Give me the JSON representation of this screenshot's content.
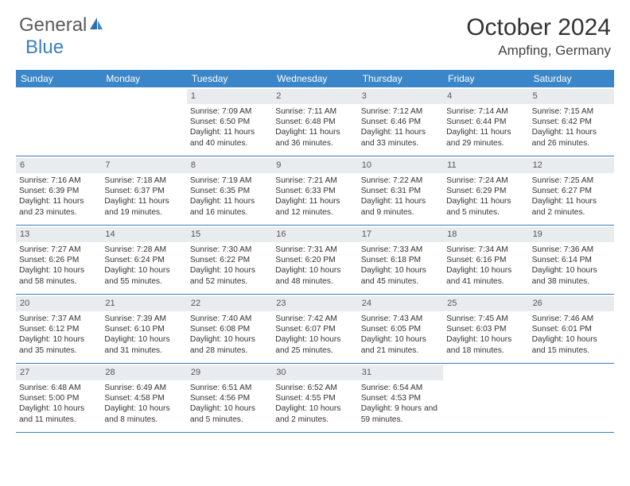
{
  "brand": {
    "part1": "General",
    "part2": "Blue"
  },
  "title": "October 2024",
  "location": "Ampfing, Germany",
  "colors": {
    "header_bg": "#3a86c8",
    "accent": "#3a7fc4",
    "daynum_bg": "#e8ecef",
    "text": "#333333",
    "logo_gray": "#5a5a5a"
  },
  "day_headers": [
    "Sunday",
    "Monday",
    "Tuesday",
    "Wednesday",
    "Thursday",
    "Friday",
    "Saturday"
  ],
  "weeks": [
    [
      null,
      null,
      {
        "n": "1",
        "sunrise": "7:09 AM",
        "sunset": "6:50 PM",
        "daylight": "11 hours and 40 minutes."
      },
      {
        "n": "2",
        "sunrise": "7:11 AM",
        "sunset": "6:48 PM",
        "daylight": "11 hours and 36 minutes."
      },
      {
        "n": "3",
        "sunrise": "7:12 AM",
        "sunset": "6:46 PM",
        "daylight": "11 hours and 33 minutes."
      },
      {
        "n": "4",
        "sunrise": "7:14 AM",
        "sunset": "6:44 PM",
        "daylight": "11 hours and 29 minutes."
      },
      {
        "n": "5",
        "sunrise": "7:15 AM",
        "sunset": "6:42 PM",
        "daylight": "11 hours and 26 minutes."
      }
    ],
    [
      {
        "n": "6",
        "sunrise": "7:16 AM",
        "sunset": "6:39 PM",
        "daylight": "11 hours and 23 minutes."
      },
      {
        "n": "7",
        "sunrise": "7:18 AM",
        "sunset": "6:37 PM",
        "daylight": "11 hours and 19 minutes."
      },
      {
        "n": "8",
        "sunrise": "7:19 AM",
        "sunset": "6:35 PM",
        "daylight": "11 hours and 16 minutes."
      },
      {
        "n": "9",
        "sunrise": "7:21 AM",
        "sunset": "6:33 PM",
        "daylight": "11 hours and 12 minutes."
      },
      {
        "n": "10",
        "sunrise": "7:22 AM",
        "sunset": "6:31 PM",
        "daylight": "11 hours and 9 minutes."
      },
      {
        "n": "11",
        "sunrise": "7:24 AM",
        "sunset": "6:29 PM",
        "daylight": "11 hours and 5 minutes."
      },
      {
        "n": "12",
        "sunrise": "7:25 AM",
        "sunset": "6:27 PM",
        "daylight": "11 hours and 2 minutes."
      }
    ],
    [
      {
        "n": "13",
        "sunrise": "7:27 AM",
        "sunset": "6:26 PM",
        "daylight": "10 hours and 58 minutes."
      },
      {
        "n": "14",
        "sunrise": "7:28 AM",
        "sunset": "6:24 PM",
        "daylight": "10 hours and 55 minutes."
      },
      {
        "n": "15",
        "sunrise": "7:30 AM",
        "sunset": "6:22 PM",
        "daylight": "10 hours and 52 minutes."
      },
      {
        "n": "16",
        "sunrise": "7:31 AM",
        "sunset": "6:20 PM",
        "daylight": "10 hours and 48 minutes."
      },
      {
        "n": "17",
        "sunrise": "7:33 AM",
        "sunset": "6:18 PM",
        "daylight": "10 hours and 45 minutes."
      },
      {
        "n": "18",
        "sunrise": "7:34 AM",
        "sunset": "6:16 PM",
        "daylight": "10 hours and 41 minutes."
      },
      {
        "n": "19",
        "sunrise": "7:36 AM",
        "sunset": "6:14 PM",
        "daylight": "10 hours and 38 minutes."
      }
    ],
    [
      {
        "n": "20",
        "sunrise": "7:37 AM",
        "sunset": "6:12 PM",
        "daylight": "10 hours and 35 minutes."
      },
      {
        "n": "21",
        "sunrise": "7:39 AM",
        "sunset": "6:10 PM",
        "daylight": "10 hours and 31 minutes."
      },
      {
        "n": "22",
        "sunrise": "7:40 AM",
        "sunset": "6:08 PM",
        "daylight": "10 hours and 28 minutes."
      },
      {
        "n": "23",
        "sunrise": "7:42 AM",
        "sunset": "6:07 PM",
        "daylight": "10 hours and 25 minutes."
      },
      {
        "n": "24",
        "sunrise": "7:43 AM",
        "sunset": "6:05 PM",
        "daylight": "10 hours and 21 minutes."
      },
      {
        "n": "25",
        "sunrise": "7:45 AM",
        "sunset": "6:03 PM",
        "daylight": "10 hours and 18 minutes."
      },
      {
        "n": "26",
        "sunrise": "7:46 AM",
        "sunset": "6:01 PM",
        "daylight": "10 hours and 15 minutes."
      }
    ],
    [
      {
        "n": "27",
        "sunrise": "6:48 AM",
        "sunset": "5:00 PM",
        "daylight": "10 hours and 11 minutes."
      },
      {
        "n": "28",
        "sunrise": "6:49 AM",
        "sunset": "4:58 PM",
        "daylight": "10 hours and 8 minutes."
      },
      {
        "n": "29",
        "sunrise": "6:51 AM",
        "sunset": "4:56 PM",
        "daylight": "10 hours and 5 minutes."
      },
      {
        "n": "30",
        "sunrise": "6:52 AM",
        "sunset": "4:55 PM",
        "daylight": "10 hours and 2 minutes."
      },
      {
        "n": "31",
        "sunrise": "6:54 AM",
        "sunset": "4:53 PM",
        "daylight": "9 hours and 59 minutes."
      },
      null,
      null
    ]
  ],
  "labels": {
    "sunrise": "Sunrise:",
    "sunset": "Sunset:",
    "daylight": "Daylight:"
  }
}
